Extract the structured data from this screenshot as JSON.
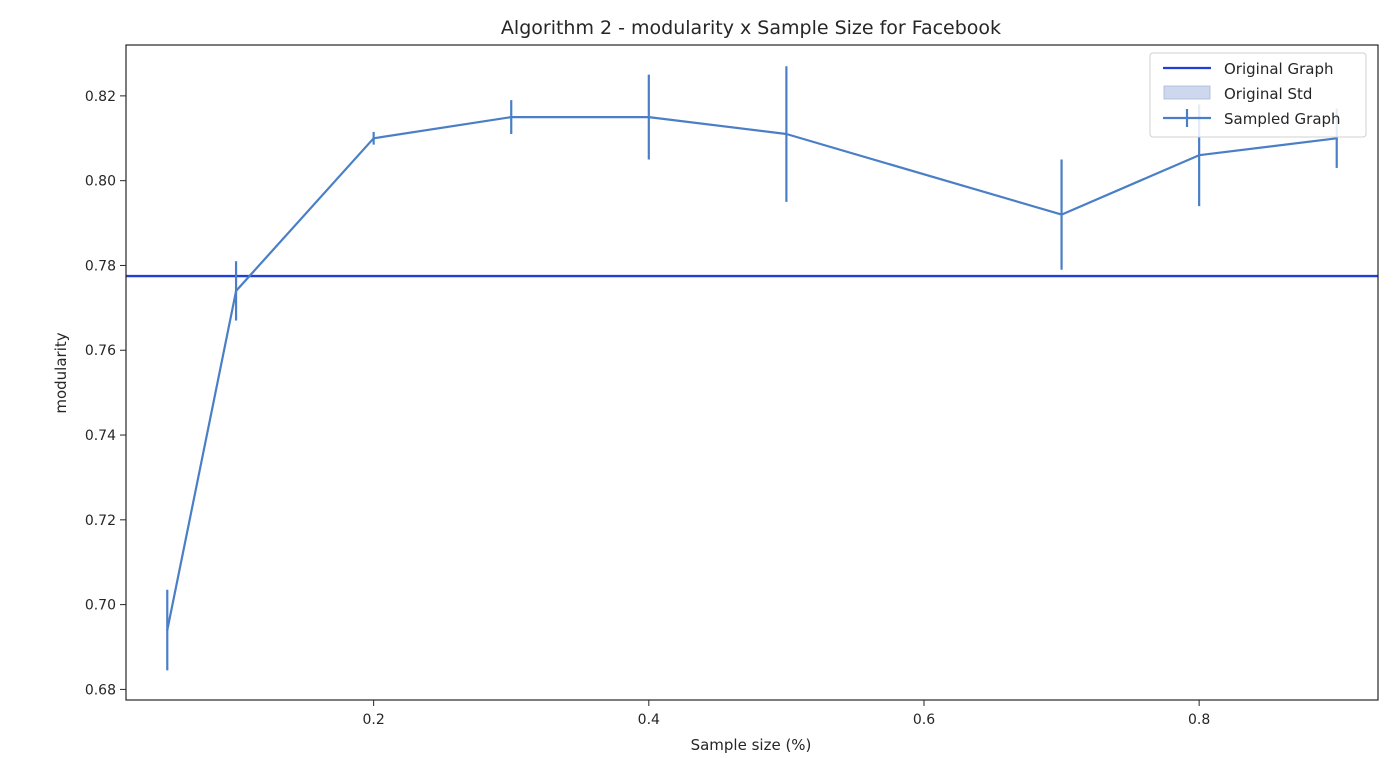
{
  "chart_data": {
    "type": "line",
    "title": "Algorithm 2 - modularity x Sample Size for Facebook",
    "xlabel": "Sample size (%)",
    "ylabel": "modularity",
    "xlim": [
      0.02,
      0.93
    ],
    "ylim": [
      0.6775,
      0.832
    ],
    "xticks": [
      0.2,
      0.4,
      0.6,
      0.8
    ],
    "xtick_labels": [
      "0.2",
      "0.4",
      "0.6",
      "0.8"
    ],
    "yticks": [
      0.68,
      0.7,
      0.72,
      0.74,
      0.76,
      0.78,
      0.8,
      0.82
    ],
    "ytick_labels": [
      "0.68",
      "0.70",
      "0.72",
      "0.74",
      "0.76",
      "0.78",
      "0.80",
      "0.82"
    ],
    "grid": false,
    "legend_position": "top-right",
    "legend": [
      "Original Graph",
      "Original Std",
      "Sampled Graph"
    ],
    "original": {
      "name": "Original Graph",
      "value": 0.7775,
      "color": "#1f3fd6"
    },
    "original_std": {
      "name": "Original Std",
      "color": "#cdd8ee"
    },
    "series": [
      {
        "name": "Sampled Graph",
        "color": "#4a7fc7",
        "x": [
          0.05,
          0.1,
          0.2,
          0.3,
          0.4,
          0.5,
          0.7,
          0.8,
          0.9
        ],
        "y": [
          0.694,
          0.774,
          0.81,
          0.815,
          0.815,
          0.811,
          0.792,
          0.806,
          0.81
        ],
        "yerr": [
          0.0095,
          0.007,
          0.0015,
          0.004,
          0.01,
          0.016,
          0.013,
          0.012,
          0.007
        ]
      }
    ]
  }
}
